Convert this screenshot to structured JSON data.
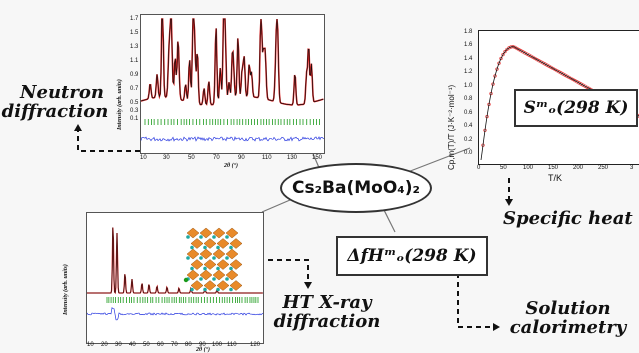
{
  "center": {
    "compound": "Cs₂Ba(MoO₄)₂"
  },
  "neutron": {
    "label_line1": "Neutron",
    "label_line2": "diffraction",
    "xlabel": "2θ (°)",
    "ylabel": "Intensity (arb. units)",
    "xticks": [
      "10",
      "30",
      "50",
      "70",
      "90",
      "110",
      "130",
      "150"
    ],
    "yticks": [
      "1.7",
      "1.5",
      "1.3",
      "1.1",
      "0.9",
      "0.7",
      "0.5",
      "0.3",
      "0.1"
    ]
  },
  "specific_heat": {
    "label": "Specific heat",
    "entropy_box": "Sᵐₒ(298 K)",
    "xlabel": "T/K",
    "ylabel": "Cp,m(T)/T (J·K⁻²·mol⁻¹)",
    "xticks": [
      "0",
      "50",
      "100",
      "150",
      "200",
      "250",
      "3"
    ],
    "yticks": [
      "1.8",
      "1.6",
      "1.4",
      "1.2",
      "1.0",
      "0.8",
      "0.6",
      "0.4",
      "0.2",
      "0.0"
    ]
  },
  "xray": {
    "label_line1": "HT X-ray",
    "label_line2": "diffraction",
    "xlabel": "2θ (°)",
    "ylabel": "Intensity (arb. units)",
    "xticks": [
      "10",
      "20",
      "30",
      "40",
      "50",
      "60",
      "70",
      "80",
      "90",
      "100",
      "110",
      "120"
    ]
  },
  "calorimetry": {
    "label_line1": "Solution",
    "label_line2": "calorimetry",
    "enthalpy_box": "ΔfHᵐₒ(298 K)"
  },
  "colors": {
    "observed": "#e02020",
    "calculated": "#111111",
    "bragg": "#1a9a1a",
    "difference": "#2a3ae0"
  }
}
